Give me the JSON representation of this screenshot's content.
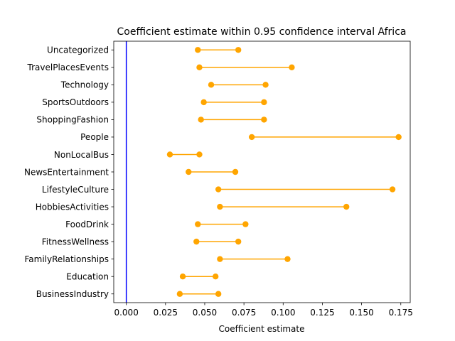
{
  "chart_data": {
    "type": "dumbbell",
    "title": "Coefficient estimate within 0.95 confidence interval Africa",
    "xlabel": "Coefficient estimate",
    "ylabel": "",
    "xlim": [
      -0.008,
      0.181
    ],
    "xticks": [
      0.0,
      0.025,
      0.05,
      0.075,
      0.1,
      0.125,
      0.15,
      0.175
    ],
    "xtick_labels": [
      "0.000",
      "0.025",
      "0.050",
      "0.075",
      "0.100",
      "0.125",
      "0.150",
      "0.175"
    ],
    "reference_line": {
      "x": 0,
      "color": "#0000ff"
    },
    "interval_color": "#ffa500",
    "grid": false,
    "categories": [
      "Uncategorized",
      "TravelPlacesEvents",
      "Technology",
      "SportsOutdoors",
      "ShoppingFashion",
      "People",
      "NonLocalBus",
      "NewsEntertainment",
      "LifestyleCulture",
      "HobbiesActivities",
      "FoodDrink",
      "FitnessWellness",
      "FamilyRelationships",
      "Education",
      "BusinessIndustry"
    ],
    "intervals": [
      {
        "low": 0.0456,
        "high": 0.0714
      },
      {
        "low": 0.0466,
        "high": 0.1055
      },
      {
        "low": 0.0541,
        "high": 0.0888
      },
      {
        "low": 0.0494,
        "high": 0.0878
      },
      {
        "low": 0.0476,
        "high": 0.0878
      },
      {
        "low": 0.08,
        "high": 0.1736
      },
      {
        "low": 0.0278,
        "high": 0.0466
      },
      {
        "low": 0.0397,
        "high": 0.0695
      },
      {
        "low": 0.0587,
        "high": 0.1697
      },
      {
        "low": 0.0597,
        "high": 0.1403
      },
      {
        "low": 0.0456,
        "high": 0.076
      },
      {
        "low": 0.0447,
        "high": 0.0714
      },
      {
        "low": 0.0597,
        "high": 0.1028
      },
      {
        "low": 0.036,
        "high": 0.0569
      },
      {
        "low": 0.0341,
        "high": 0.0587
      }
    ]
  }
}
